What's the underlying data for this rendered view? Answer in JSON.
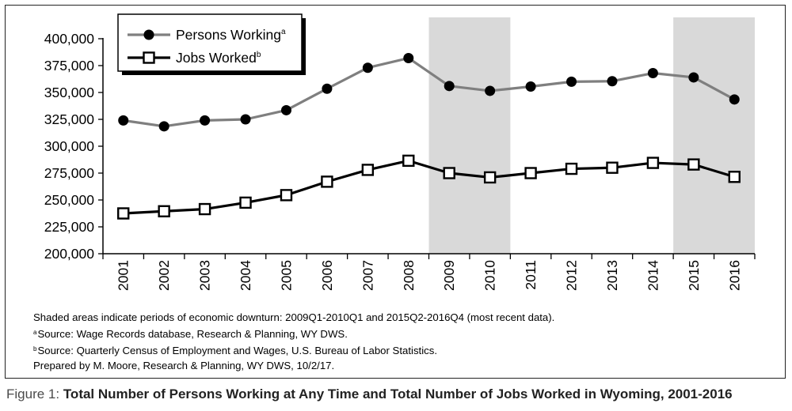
{
  "chart_data": {
    "type": "line",
    "categories": [
      "2001",
      "2002",
      "2003",
      "2004",
      "2005",
      "2006",
      "2007",
      "2008",
      "2009",
      "2010",
      "2011",
      "2012",
      "2013",
      "2014",
      "2015",
      "2016"
    ],
    "ylim": [
      200000,
      400000
    ],
    "yticks": [
      200000,
      225000,
      250000,
      275000,
      300000,
      325000,
      350000,
      375000,
      400000
    ],
    "ytick_labels": [
      "200,000",
      "225,000",
      "250,000",
      "275,000",
      "300,000",
      "325,000",
      "350,000",
      "375,000",
      "400,000"
    ],
    "grid": false,
    "legend_position": "top-left",
    "shaded_periods": [
      {
        "from": "2009",
        "to": "2010"
      },
      {
        "from": "2015",
        "to": "2016"
      }
    ],
    "series": [
      {
        "name": "Persons Working",
        "superscript": "a",
        "color": "#7f7f7f",
        "marker": "filled-circle",
        "values": [
          324000,
          318500,
          324000,
          325000,
          333500,
          353500,
          373000,
          382000,
          356000,
          351500,
          355500,
          360000,
          360500,
          368000,
          364000,
          343500
        ]
      },
      {
        "name": "Jobs Worked",
        "superscript": "b",
        "color": "#000000",
        "marker": "open-square",
        "values": [
          237500,
          239500,
          241500,
          247500,
          254500,
          267000,
          278000,
          286500,
          275000,
          271000,
          275000,
          279000,
          280000,
          284500,
          283000,
          271500
        ]
      }
    ]
  },
  "notes": {
    "shading": "Shaded areas indicate periods of economic downturn: 2009Q1-2010Q1 and 2015Q2-2016Q4 (most recent data).",
    "source_a_mark": "a",
    "source_a": "Source: Wage Records database, Research & Planning, WY DWS.",
    "source_b_mark": "b",
    "source_b": "Source: Quarterly Census of Employment and Wages, U.S. Bureau of Labor Statistics.",
    "prepared": "Prepared by M. Moore, Research & Planning, WY DWS, 10/2/17."
  },
  "caption": {
    "figure_label": "Figure 1: ",
    "title": "Total Number of Persons Working at Any Time and Total Number of Jobs Worked in Wyoming, 2001-2016"
  }
}
